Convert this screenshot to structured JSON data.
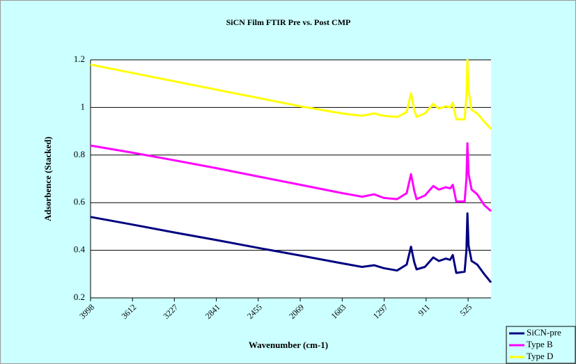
{
  "chart_data": {
    "type": "line",
    "title": "SiCN Film FTIR Pre vs. Post CMP",
    "xlabel": "Wavenumber (cm-1)",
    "ylabel": "Adsorbence (Stacked)",
    "x": [
      3998,
      3612,
      3227,
      2841,
      2455,
      2069,
      1683,
      1500,
      1390,
      1300,
      1178,
      1090,
      1050,
      1020,
      999,
      922,
      845,
      794,
      730,
      690,
      666,
      634,
      557,
      540,
      531,
      520,
      493,
      441,
      377,
      314
    ],
    "series": [
      {
        "name": "SiCN-pre",
        "color": "#000080",
        "values": [
          0.54,
          0.508,
          0.475,
          0.443,
          0.41,
          0.378,
          0.345,
          0.33,
          0.337,
          0.325,
          0.315,
          0.34,
          0.415,
          0.35,
          0.32,
          0.33,
          0.37,
          0.355,
          0.365,
          0.36,
          0.38,
          0.305,
          0.31,
          0.4,
          0.555,
          0.42,
          0.355,
          0.34,
          0.3,
          0.265
        ]
      },
      {
        "name": "Type B",
        "color": "#ff00ff",
        "values": [
          0.84,
          0.81,
          0.778,
          0.745,
          0.71,
          0.675,
          0.64,
          0.625,
          0.635,
          0.62,
          0.615,
          0.64,
          0.72,
          0.65,
          0.615,
          0.63,
          0.67,
          0.655,
          0.665,
          0.66,
          0.675,
          0.605,
          0.605,
          0.7,
          0.85,
          0.72,
          0.655,
          0.635,
          0.59,
          0.565
        ]
      },
      {
        "name": "Type D",
        "color": "#ffff00",
        "values": [
          1.18,
          1.145,
          1.11,
          1.075,
          1.04,
          1.005,
          0.975,
          0.965,
          0.975,
          0.965,
          0.96,
          0.98,
          1.06,
          0.99,
          0.96,
          0.975,
          1.015,
          0.995,
          1.005,
          1.0,
          1.02,
          0.95,
          0.95,
          1.05,
          1.2,
          1.07,
          0.99,
          0.975,
          0.94,
          0.91
        ]
      }
    ],
    "xlim": [
      3998,
      314
    ],
    "xticks": [
      3998,
      3612,
      3227,
      2841,
      2455,
      2069,
      1683,
      1297,
      911,
      525
    ],
    "ylim": [
      0.2,
      1.2
    ],
    "yticks": [
      0.2,
      0.4,
      0.6,
      0.8,
      1,
      1.2
    ],
    "grid": true,
    "legend": "bottom-right"
  }
}
